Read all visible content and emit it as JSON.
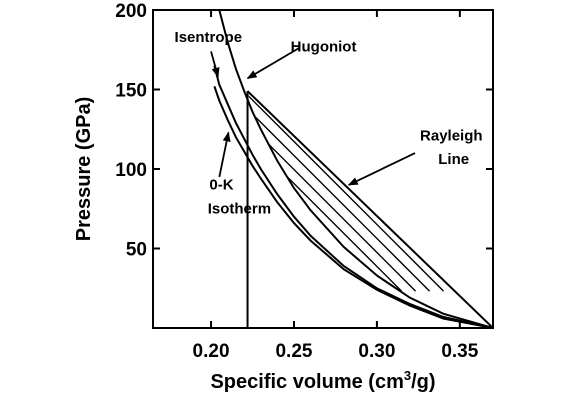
{
  "chart_data": {
    "type": "line",
    "title": "",
    "xlabel": "Specific volume (cm",
    "xlabel_sup": "3",
    "xlabel_suffix": "/g)",
    "ylabel": "Pressure (GPa)",
    "xlim": [
      0.165,
      0.37
    ],
    "ylim": [
      0,
      200
    ],
    "x_ticks": [
      0.2,
      0.25,
      0.3,
      0.35
    ],
    "x_tick_labels": [
      "0.20",
      "0.25",
      "0.30",
      "0.35"
    ],
    "y_ticks": [
      50,
      100,
      150,
      200
    ],
    "y_tick_labels": [
      "50",
      "100",
      "150",
      "200"
    ],
    "grid": false,
    "series": [
      {
        "name": "Hugoniot",
        "x": [
          0.205,
          0.21,
          0.215,
          0.22,
          0.225,
          0.23,
          0.24,
          0.25,
          0.26,
          0.28,
          0.3,
          0.32,
          0.34,
          0.37
        ],
        "y": [
          200,
          180,
          163,
          149,
          136,
          125,
          105,
          88,
          74,
          51,
          33,
          19,
          9,
          0
        ]
      },
      {
        "name": "Isentrope",
        "x": [
          0.202,
          0.205,
          0.21,
          0.215,
          0.22,
          0.225,
          0.23,
          0.24,
          0.25,
          0.26,
          0.28,
          0.3,
          0.32,
          0.34,
          0.37
        ],
        "y": [
          165,
          153,
          141,
          129,
          119,
          109,
          100,
          84,
          70,
          58,
          39,
          25,
          15,
          7,
          0
        ]
      },
      {
        "name": "0-K Isotherm",
        "x": [
          0.202,
          0.205,
          0.21,
          0.215,
          0.22,
          0.225,
          0.23,
          0.24,
          0.25,
          0.26,
          0.28,
          0.3,
          0.32,
          0.34,
          0.37
        ],
        "y": [
          152,
          143,
          131,
          120,
          111,
          102,
          94,
          79,
          66,
          55,
          37,
          24,
          14,
          6,
          0
        ]
      },
      {
        "name": "Rayleigh Line",
        "x": [
          0.222,
          0.37
        ],
        "y": [
          149,
          0
        ]
      }
    ],
    "vertical_line": {
      "x": 0.222,
      "y": [
        0,
        149
      ]
    },
    "annotations": [
      {
        "text": "Hugoniot",
        "x": 0.248,
        "y": 174
      },
      {
        "text": "Isentrope",
        "x": 0.178,
        "y": 180
      },
      {
        "text": "Rayleigh",
        "x": 0.326,
        "y": 118
      },
      {
        "text": "Line",
        "x": 0.337,
        "y": 103
      },
      {
        "text": "0-K",
        "x": 0.199,
        "y": 87
      },
      {
        "text": "Isotherm",
        "x": 0.198,
        "y": 72
      }
    ]
  }
}
